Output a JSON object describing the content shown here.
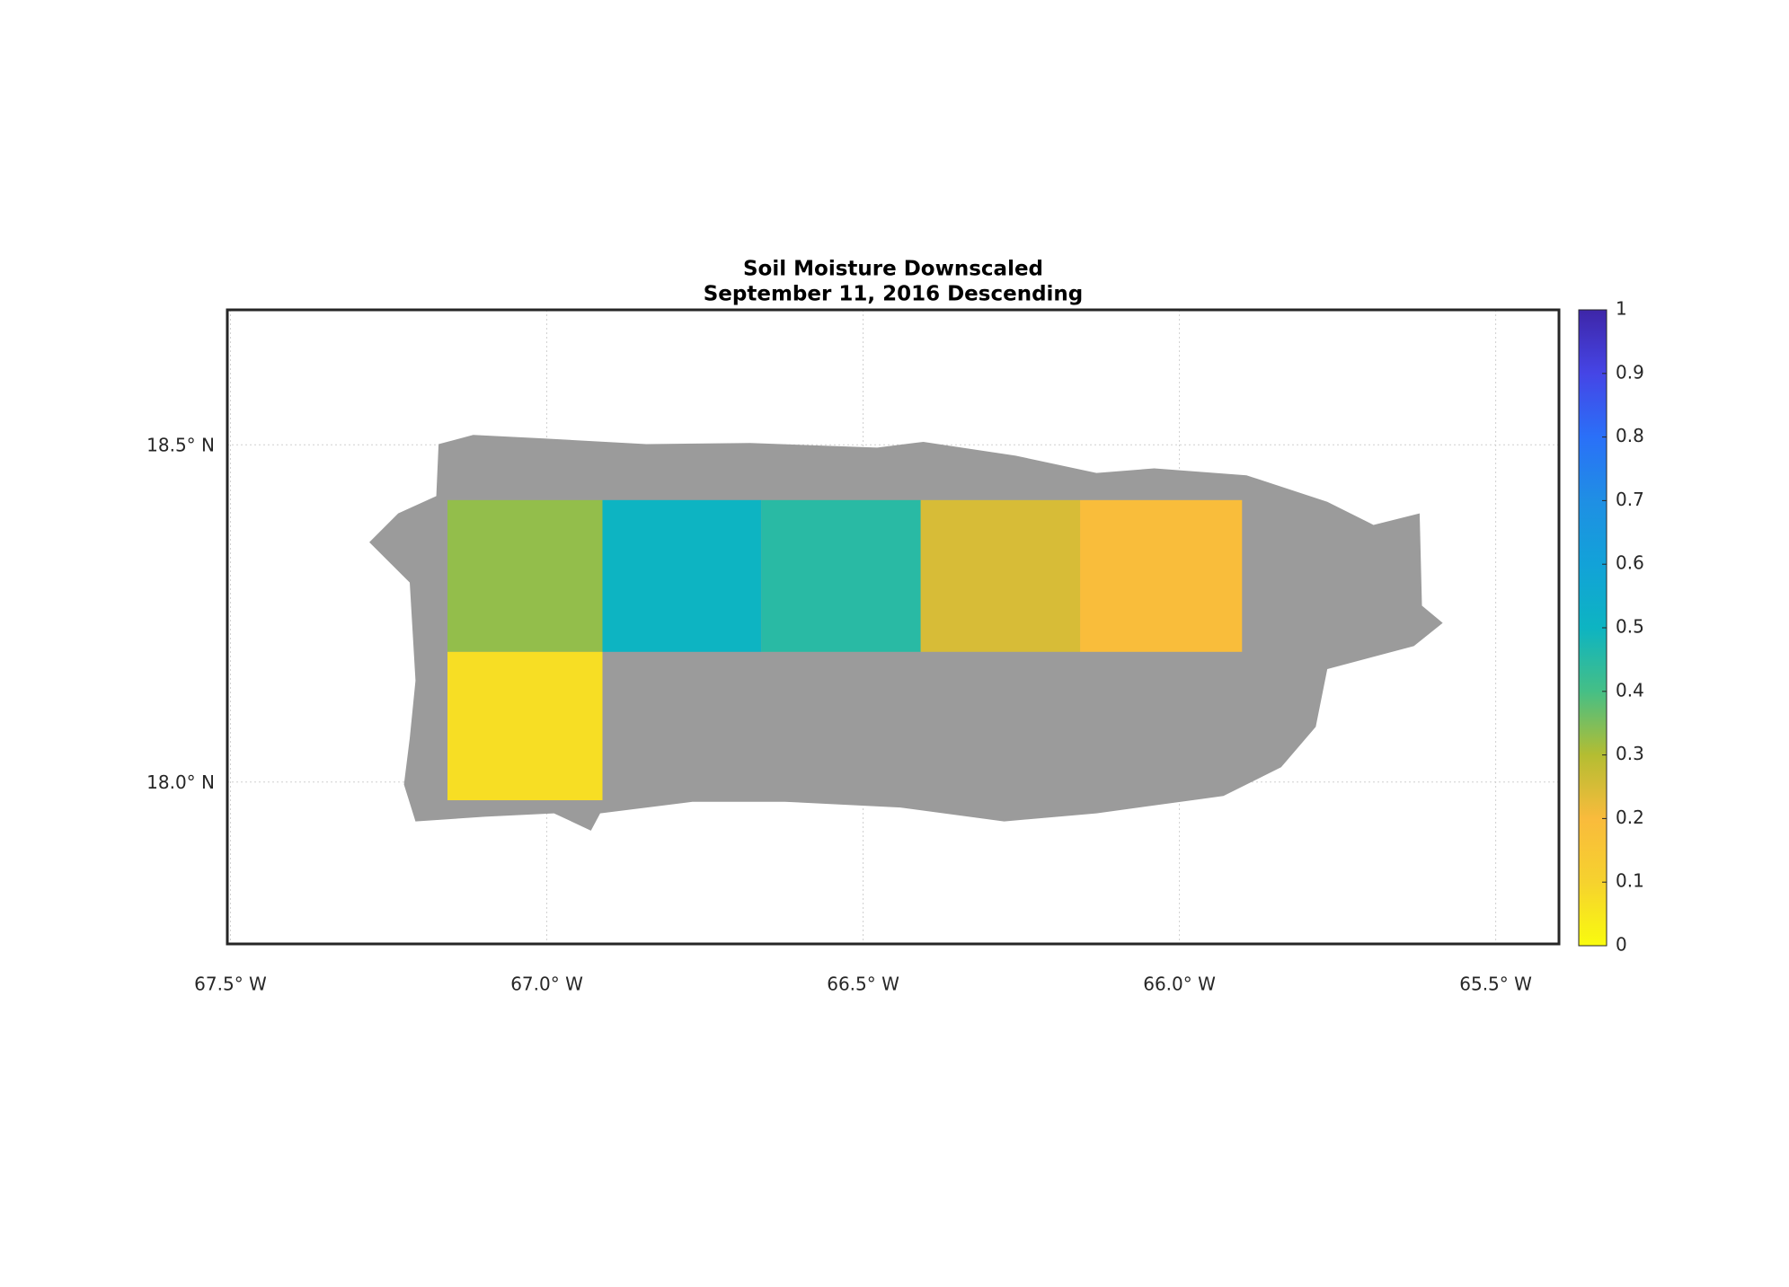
{
  "chart_data": {
    "type": "map",
    "title": [
      "Soil Moisture Downscaled",
      "September 11, 2016 Descending"
    ],
    "colormap": "parula",
    "xlim": [
      -67.505,
      -65.4
    ],
    "ylim": [
      17.76,
      18.7
    ],
    "xticks": [
      {
        "value": -67.5,
        "label": "67.5° W"
      },
      {
        "value": -67.0,
        "label": "67.0° W"
      },
      {
        "value": -66.5,
        "label": "66.5° W"
      },
      {
        "value": -66.0,
        "label": "66.0° W"
      },
      {
        "value": -65.5,
        "label": "65.5° W"
      }
    ],
    "yticks": [
      {
        "value": 18.0,
        "label": "18.0° N"
      },
      {
        "value": 18.5,
        "label": "18.5° N"
      }
    ],
    "grid": true,
    "clim": [
      0,
      1
    ],
    "cticks": [
      0,
      0.1,
      0.2,
      0.3,
      0.4,
      0.5,
      0.6,
      0.7,
      0.8,
      0.9,
      1
    ],
    "tiles": [
      {
        "lon": [
          -67.157,
          -66.912
        ],
        "lat": [
          18.193,
          18.418
        ],
        "value": 0.33
      },
      {
        "lon": [
          -66.912,
          -66.661
        ],
        "lat": [
          18.193,
          18.418
        ],
        "value": 0.5
      },
      {
        "lon": [
          -66.661,
          -66.409
        ],
        "lat": [
          18.193,
          18.418
        ],
        "value": 0.45
      },
      {
        "lon": [
          -66.409,
          -66.157
        ],
        "lat": [
          18.193,
          18.418
        ],
        "value": 0.25
      },
      {
        "lon": [
          -66.157,
          -65.901
        ],
        "lat": [
          18.193,
          18.418
        ],
        "value": 0.19
      },
      {
        "lon": [
          -67.157,
          -66.912
        ],
        "lat": [
          17.973,
          18.193
        ],
        "value": 0.07
      }
    ]
  }
}
